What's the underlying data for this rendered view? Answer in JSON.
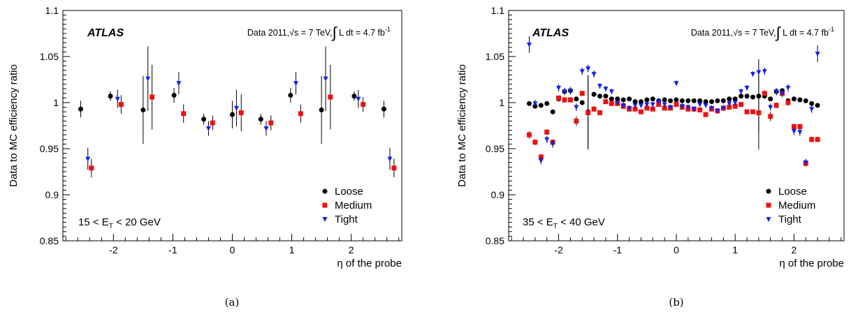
{
  "chart_data": [
    {
      "type": "scatter",
      "panel_caption": "(a)",
      "ylabel": "Data to MC efficiency ratio",
      "xlabel": "η of the probe",
      "xlim": [
        -2.85,
        2.85
      ],
      "ylim": [
        0.85,
        1.1
      ],
      "x_ticks": [
        -2,
        -1,
        0,
        1,
        2
      ],
      "y_ticks": [
        0.85,
        0.9,
        0.95,
        1,
        1.05,
        1.1
      ],
      "y_tick_labels": [
        "0.85",
        "0.9",
        "0.95",
        "1",
        "1.05",
        "1.1"
      ],
      "x_tick_labels": [
        "-2",
        "-1",
        "0",
        "1",
        "2"
      ],
      "experiment_label": "ATLAS",
      "data_label": {
        "prefix": "Data 2011,",
        "sqrt": "√s",
        "energy": " = 7 TeV,",
        "integral": "∫",
        "lumi": " L dt = 4.7 fb",
        "lumi_exp": "-1"
      },
      "range_label": {
        "prefix": "15 < E",
        "sub": "T",
        "suffix": " < 20 GeV"
      },
      "legend_position": "bottom-right",
      "series": [
        {
          "name": "Loose",
          "marker": "circle",
          "color": "#000000",
          "x": [
            -2.55,
            -2.05,
            -1.5,
            -0.98,
            -0.48,
            0.0,
            0.48,
            0.98,
            1.5,
            2.05,
            2.55
          ],
          "y": [
            0.993,
            1.007,
            0.992,
            1.008,
            0.982,
            0.987,
            0.982,
            1.008,
            0.992,
            1.007,
            0.993
          ],
          "err": [
            0.009,
            0.005,
            0.037,
            0.008,
            0.006,
            0.015,
            0.006,
            0.008,
            0.037,
            0.005,
            0.009
          ]
        },
        {
          "name": "Medium",
          "marker": "square",
          "color": "#ee1111",
          "x": [
            -2.37,
            -1.87,
            -1.35,
            -0.82,
            -0.33,
            0.15,
            0.65,
            1.15,
            1.65,
            2.2,
            2.72
          ],
          "y": [
            0.929,
            0.998,
            1.006,
            0.988,
            0.978,
            0.989,
            0.978,
            0.988,
            1.006,
            0.998,
            0.929
          ],
          "err": [
            0.01,
            0.01,
            0.035,
            0.01,
            0.008,
            0.02,
            0.008,
            0.01,
            0.035,
            0.008,
            0.01
          ]
        },
        {
          "name": "Tight",
          "marker": "triangle",
          "color": "#1122ee",
          "x": [
            -2.43,
            -1.93,
            -1.42,
            -0.9,
            -0.4,
            0.07,
            0.57,
            1.07,
            1.57,
            2.12,
            2.65
          ],
          "y": [
            0.939,
            1.004,
            1.026,
            1.021,
            0.972,
            0.994,
            0.972,
            1.021,
            1.026,
            1.004,
            0.939
          ],
          "err": [
            0.012,
            0.01,
            0.035,
            0.012,
            0.008,
            0.02,
            0.008,
            0.012,
            0.035,
            0.01,
            0.012
          ]
        }
      ]
    },
    {
      "type": "scatter",
      "panel_caption": "(b)",
      "ylabel": "Data to MC efficiency ratio",
      "xlabel": "η of the probe",
      "xlim": [
        -2.85,
        2.85
      ],
      "ylim": [
        0.85,
        1.1
      ],
      "x_ticks": [
        -2,
        -1,
        0,
        1,
        2
      ],
      "y_ticks": [
        0.85,
        0.9,
        0.95,
        1,
        1.05,
        1.1
      ],
      "y_tick_labels": [
        "0.85",
        "0.9",
        "0.95",
        "1",
        "1.05",
        "1.1"
      ],
      "x_tick_labels": [
        "-2",
        "-1",
        "0",
        "1",
        "2"
      ],
      "experiment_label": "ATLAS",
      "data_label": {
        "prefix": "Data 2011,",
        "sqrt": "√s",
        "energy": " = 7 TeV,",
        "integral": "∫",
        "lumi": " L dt = 4.7 fb",
        "lumi_exp": "-1"
      },
      "range_label": {
        "prefix": "35 < E",
        "sub": "T",
        "suffix": " < 40 GeV"
      },
      "legend_position": "bottom-right",
      "series": [
        {
          "name": "Loose",
          "marker": "circle",
          "color": "#000000",
          "x": [
            -2.5,
            -2.4,
            -2.3,
            -2.2,
            -2.1,
            -2.0,
            -1.9,
            -1.8,
            -1.7,
            -1.6,
            -1.5,
            -1.4,
            -1.3,
            -1.2,
            -1.1,
            -1.0,
            -0.9,
            -0.8,
            -0.7,
            -0.6,
            -0.5,
            -0.4,
            -0.3,
            -0.2,
            -0.1,
            0.0,
            0.1,
            0.2,
            0.3,
            0.4,
            0.5,
            0.6,
            0.7,
            0.8,
            0.9,
            1.0,
            1.1,
            1.2,
            1.3,
            1.4,
            1.5,
            1.6,
            1.7,
            1.8,
            1.9,
            2.0,
            2.1,
            2.2,
            2.3,
            2.4
          ],
          "y": [
            0.999,
            0.996,
            0.997,
            0.999,
            0.99,
            1.004,
            1.012,
            1.013,
            1.004,
            1.0,
            0.99,
            1.009,
            1.007,
            1.007,
            1.004,
            1.004,
            1.003,
            1.004,
            1.001,
            1.001,
            1.003,
            1.004,
            1.002,
            1.003,
            1.002,
            1.003,
            1.002,
            1.002,
            1.002,
            1.002,
            1.001,
            1.001,
            1.002,
            1.002,
            1.004,
            1.004,
            1.007,
            1.007,
            1.006,
            1.007,
            1.007,
            1.004,
            1.012,
            1.013,
            1.002,
            1.004,
            1.003,
            1.002,
            0.999,
            0.997
          ],
          "err": [
            0.002,
            0.002,
            0.002,
            0.002,
            0.002,
            0.002,
            0.002,
            0.002,
            0.002,
            0.002,
            0.04,
            0.002,
            0.002,
            0.002,
            0.002,
            0.002,
            0.002,
            0.002,
            0.002,
            0.002,
            0.002,
            0.002,
            0.002,
            0.002,
            0.002,
            0.002,
            0.002,
            0.002,
            0.002,
            0.002,
            0.002,
            0.002,
            0.002,
            0.002,
            0.002,
            0.002,
            0.002,
            0.002,
            0.002,
            0.04,
            0.002,
            0.002,
            0.002,
            0.002,
            0.002,
            0.002,
            0.002,
            0.002,
            0.002,
            0.002
          ]
        },
        {
          "name": "Medium",
          "marker": "square",
          "color": "#ee1111",
          "x": [
            -2.5,
            -2.4,
            -2.3,
            -2.2,
            -2.1,
            -2.0,
            -1.9,
            -1.8,
            -1.7,
            -1.6,
            -1.5,
            -1.4,
            -1.3,
            -1.2,
            -1.1,
            -1.0,
            -0.9,
            -0.8,
            -0.7,
            -0.6,
            -0.5,
            -0.4,
            -0.3,
            -0.2,
            -0.1,
            0.0,
            0.1,
            0.2,
            0.3,
            0.4,
            0.5,
            0.6,
            0.7,
            0.8,
            0.9,
            1.0,
            1.1,
            1.2,
            1.3,
            1.4,
            1.5,
            1.6,
            1.7,
            1.8,
            1.9,
            2.0,
            2.1,
            2.2,
            2.3,
            2.4
          ],
          "y": [
            0.965,
            0.957,
            0.941,
            0.968,
            0.957,
            1.005,
            1.003,
            1.003,
            0.98,
            1.01,
            0.989,
            0.993,
            0.989,
            1.001,
            0.999,
            0.999,
            0.996,
            0.993,
            0.993,
            0.99,
            0.994,
            0.993,
            0.998,
            0.994,
            0.994,
            0.998,
            0.995,
            0.993,
            0.993,
            0.992,
            0.987,
            0.993,
            0.991,
            0.994,
            0.995,
            0.996,
            0.998,
            0.99,
            0.99,
            0.989,
            1.01,
            0.985,
            0.997,
            1.01,
            1.0,
            0.974,
            0.974,
            0.934,
            0.96,
            0.96
          ],
          "err": [
            0.004,
            0.003,
            0.003,
            0.003,
            0.003,
            0.003,
            0.003,
            0.003,
            0.005,
            0.003,
            0.04,
            0.003,
            0.002,
            0.002,
            0.002,
            0.002,
            0.002,
            0.002,
            0.002,
            0.002,
            0.002,
            0.002,
            0.002,
            0.002,
            0.002,
            0.002,
            0.002,
            0.002,
            0.002,
            0.002,
            0.002,
            0.002,
            0.002,
            0.002,
            0.002,
            0.002,
            0.002,
            0.002,
            0.002,
            0.04,
            0.003,
            0.005,
            0.003,
            0.003,
            0.003,
            0.003,
            0.003,
            0.003,
            0.003,
            0.003
          ]
        },
        {
          "name": "Tight",
          "marker": "triangle",
          "color": "#1122ee",
          "x": [
            -2.5,
            -2.4,
            -2.3,
            -2.2,
            -2.1,
            -2.0,
            -1.9,
            -1.8,
            -1.7,
            -1.6,
            -1.5,
            -1.4,
            -1.3,
            -1.2,
            -1.1,
            -1.0,
            -0.9,
            -0.8,
            -0.7,
            -0.6,
            -0.5,
            -0.4,
            -0.3,
            -0.2,
            -0.1,
            0.0,
            0.1,
            0.2,
            0.3,
            0.4,
            0.5,
            0.6,
            0.7,
            0.8,
            0.9,
            1.0,
            1.1,
            1.2,
            1.3,
            1.4,
            1.5,
            1.6,
            1.7,
            1.8,
            1.9,
            2.0,
            2.1,
            2.2,
            2.3,
            2.4
          ],
          "y": [
            1.063,
            0.999,
            0.937,
            0.96,
            0.955,
            1.016,
            1.012,
            1.013,
            0.995,
            1.034,
            1.037,
            1.031,
            1.018,
            1.015,
            1.012,
            1.0,
            0.997,
            0.994,
            0.997,
            0.997,
            0.998,
            0.998,
            1.001,
            0.998,
            0.995,
            1.021,
            0.996,
            0.995,
            0.993,
            0.998,
            0.997,
            0.994,
            0.991,
            0.994,
            0.999,
            1.0,
            1.012,
            1.016,
            1.031,
            1.033,
            1.034,
            0.995,
            1.012,
            1.01,
            1.016,
            0.969,
            0.968,
            0.935,
            0.993,
            1.053
          ],
          "err": [
            0.009,
            0.004,
            0.004,
            0.004,
            0.004,
            0.004,
            0.004,
            0.004,
            0.004,
            0.004,
            0.004,
            0.004,
            0.003,
            0.003,
            0.003,
            0.003,
            0.003,
            0.003,
            0.003,
            0.003,
            0.003,
            0.003,
            0.003,
            0.003,
            0.003,
            0.003,
            0.003,
            0.003,
            0.003,
            0.003,
            0.003,
            0.003,
            0.003,
            0.003,
            0.003,
            0.003,
            0.003,
            0.003,
            0.003,
            0.004,
            0.004,
            0.004,
            0.004,
            0.004,
            0.004,
            0.004,
            0.004,
            0.004,
            0.004,
            0.009
          ]
        }
      ]
    }
  ]
}
